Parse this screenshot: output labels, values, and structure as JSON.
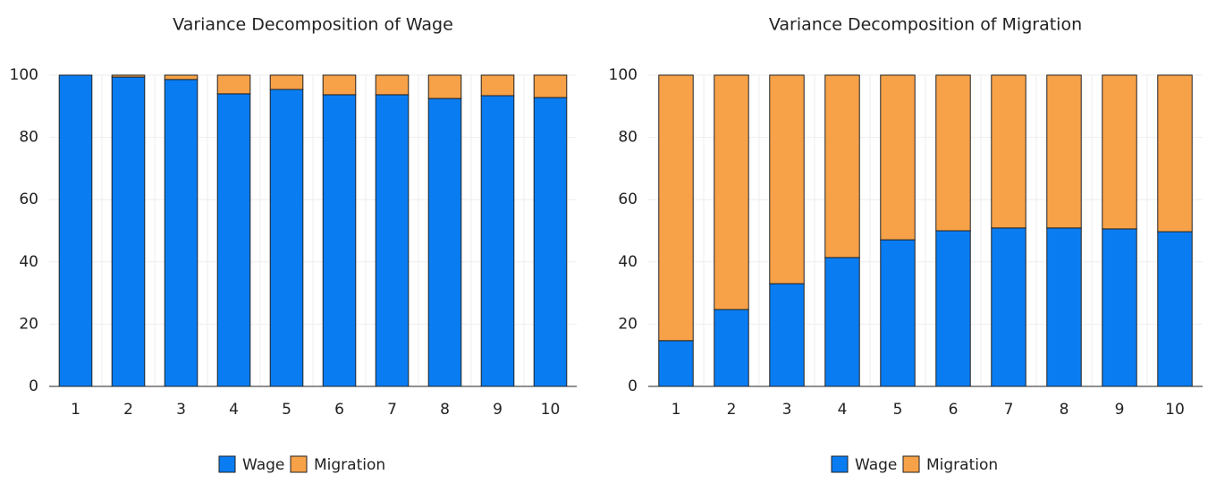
{
  "chart_data": [
    {
      "type": "stacked_bar",
      "title": "Variance Decomposition of Wage",
      "categories": [
        "1",
        "2",
        "3",
        "4",
        "5",
        "6",
        "7",
        "8",
        "9",
        "10"
      ],
      "series": [
        {
          "name": "Wage",
          "color": "#0a7cf2",
          "values": [
            100,
            99.4,
            98.6,
            94.0,
            95.4,
            93.7,
            93.7,
            92.5,
            93.4,
            92.8
          ]
        },
        {
          "name": "Migration",
          "color": "#f7a148",
          "values": [
            0,
            0.6,
            1.4,
            6.0,
            4.6,
            6.3,
            6.3,
            7.5,
            6.6,
            7.2
          ]
        }
      ],
      "ylim": [
        0,
        100
      ],
      "yticks": [
        0,
        20,
        40,
        60,
        80,
        100
      ],
      "grid": true,
      "legend": "bottom"
    },
    {
      "type": "stacked_bar",
      "title": "Variance Decomposition of Migration",
      "categories": [
        "1",
        "2",
        "3",
        "4",
        "5",
        "6",
        "7",
        "8",
        "9",
        "10"
      ],
      "series": [
        {
          "name": "Wage",
          "color": "#0a7cf2",
          "values": [
            14.7,
            24.7,
            33.0,
            41.4,
            47.1,
            50.0,
            50.9,
            50.9,
            50.6,
            49.7
          ]
        },
        {
          "name": "Migration",
          "color": "#f7a148",
          "values": [
            85.3,
            75.3,
            67.0,
            58.6,
            52.9,
            50.0,
            49.1,
            49.1,
            49.4,
            50.3
          ]
        }
      ],
      "ylim": [
        0,
        100
      ],
      "yticks": [
        0,
        20,
        40,
        60,
        80,
        100
      ],
      "grid": true,
      "legend": "bottom"
    }
  ]
}
